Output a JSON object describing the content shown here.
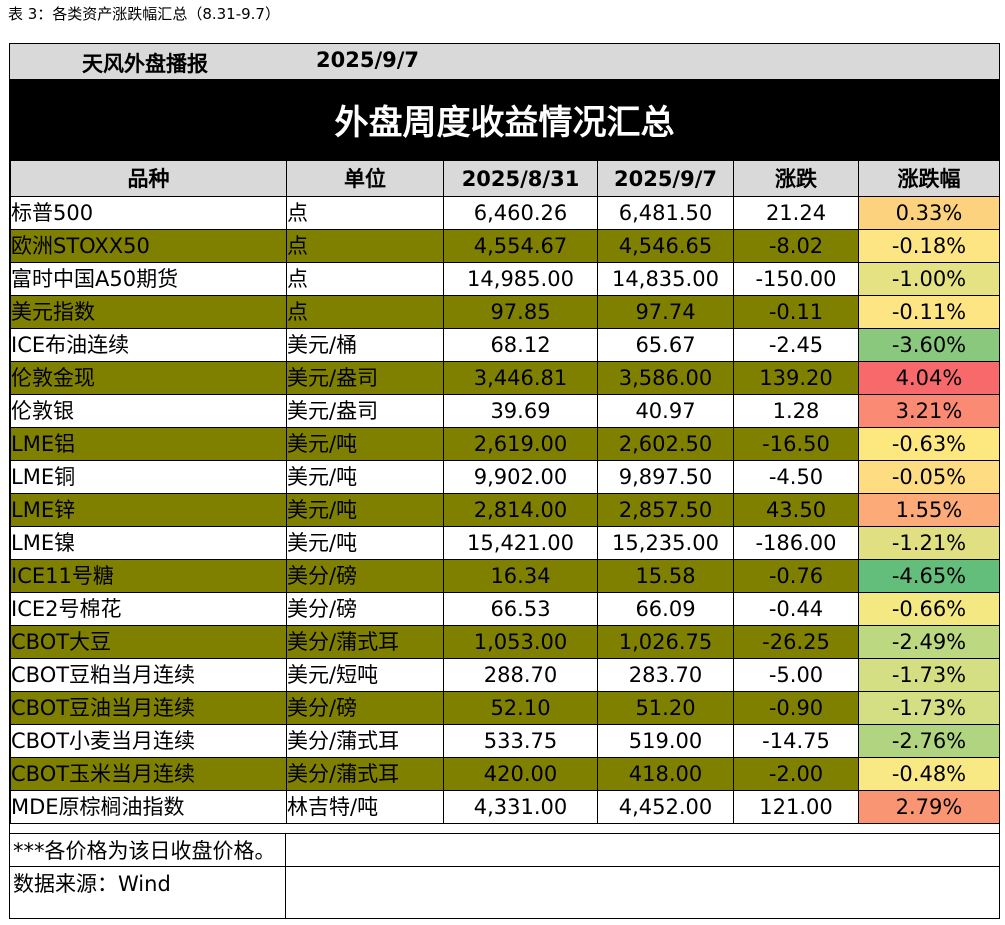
{
  "caption": "表 3：各类资产涨跌幅汇总（8.31-9.7）",
  "header": {
    "brand": "天风外盘播报",
    "date": "2025/9/7"
  },
  "banner_title": "外盘周度收益情况汇总",
  "columns": [
    "品种",
    "单位",
    "2025/8/31",
    "2025/9/7",
    "涨跌",
    "涨跌幅"
  ],
  "rows": [
    {
      "name": "标普500",
      "unit": "点",
      "prev": "6,460.26",
      "curr": "6,481.50",
      "change": "21.24",
      "pct": "0.33%",
      "shaded": false,
      "heat": "#fcd27f"
    },
    {
      "name": "欧洲STOXX50",
      "unit": "点",
      "prev": "4,554.67",
      "curr": "4,546.65",
      "change": "-8.02",
      "pct": "-0.18%",
      "shaded": true,
      "heat": "#fee583"
    },
    {
      "name": "富时中国A50期货",
      "unit": "点",
      "prev": "14,985.00",
      "curr": "14,835.00",
      "change": "-150.00",
      "pct": "-1.00%",
      "shaded": false,
      "heat": "#e5e283"
    },
    {
      "name": "美元指数",
      "unit": "点",
      "prev": "97.85",
      "curr": "97.74",
      "change": "-0.11",
      "pct": "-0.11%",
      "shaded": true,
      "heat": "#fee583"
    },
    {
      "name": "ICE布油连续",
      "unit": "美元/桶",
      "prev": "68.12",
      "curr": "65.67",
      "change": "-2.45",
      "pct": "-3.60%",
      "shaded": false,
      "heat": "#8ac97d"
    },
    {
      "name": "伦敦金现",
      "unit": "美元/盎司",
      "prev": "3,446.81",
      "curr": "3,586.00",
      "change": "139.20",
      "pct": "4.04%",
      "shaded": true,
      "heat": "#f8696b"
    },
    {
      "name": "伦敦银",
      "unit": "美元/盎司",
      "prev": "39.69",
      "curr": "40.97",
      "change": "1.28",
      "pct": "3.21%",
      "shaded": false,
      "heat": "#fa8a73"
    },
    {
      "name": "LME铝",
      "unit": "美元/吨",
      "prev": "2,619.00",
      "curr": "2,602.50",
      "change": "-16.50",
      "pct": "-0.63%",
      "shaded": true,
      "heat": "#fde880"
    },
    {
      "name": "LME铜",
      "unit": "美元/吨",
      "prev": "9,902.00",
      "curr": "9,897.50",
      "change": "-4.50",
      "pct": "-0.05%",
      "shaded": false,
      "heat": "#fedd82"
    },
    {
      "name": "LME锌",
      "unit": "美元/吨",
      "prev": "2,814.00",
      "curr": "2,857.50",
      "change": "43.50",
      "pct": "1.55%",
      "shaded": true,
      "heat": "#fbaa78"
    },
    {
      "name": "LME镍",
      "unit": "美元/吨",
      "prev": "15,421.00",
      "curr": "15,235.00",
      "change": "-186.00",
      "pct": "-1.21%",
      "shaded": false,
      "heat": "#e0e083"
    },
    {
      "name": "ICE11号糖",
      "unit": "美分/磅",
      "prev": "16.34",
      "curr": "15.58",
      "change": "-0.76",
      "pct": "-4.65%",
      "shaded": true,
      "heat": "#63be7b"
    },
    {
      "name": "ICE2号棉花",
      "unit": "美分/磅",
      "prev": "66.53",
      "curr": "66.09",
      "change": "-0.44",
      "pct": "-0.66%",
      "shaded": false,
      "heat": "#f3e882"
    },
    {
      "name": "CBOT大豆",
      "unit": "美分/蒲式耳",
      "prev": "1,053.00",
      "curr": "1,026.75",
      "change": "-26.25",
      "pct": "-2.49%",
      "shaded": true,
      "heat": "#bcd881"
    },
    {
      "name": "CBOT豆粕当月连续",
      "unit": "美元/短吨",
      "prev": "288.70",
      "curr": "283.70",
      "change": "-5.00",
      "pct": "-1.73%",
      "shaded": false,
      "heat": "#d3df82"
    },
    {
      "name": "CBOT豆油当月连续",
      "unit": "美分/磅",
      "prev": "52.10",
      "curr": "51.20",
      "change": "-0.90",
      "pct": "-1.73%",
      "shaded": true,
      "heat": "#d3df82"
    },
    {
      "name": "CBOT小麦当月连续",
      "unit": "美分/蒲式耳",
      "prev": "533.75",
      "curr": "519.00",
      "change": "-14.75",
      "pct": "-2.76%",
      "shaded": false,
      "heat": "#b0d47f"
    },
    {
      "name": "CBOT玉米当月连续",
      "unit": "美分/蒲式耳",
      "prev": "420.00",
      "curr": "418.00",
      "change": "-2.00",
      "pct": "-0.48%",
      "shaded": true,
      "heat": "#f8e984"
    },
    {
      "name": "MDE原棕榈油指数",
      "unit": "林吉特/吨",
      "prev": "4,331.00",
      "curr": "4,452.00",
      "change": "121.00",
      "pct": "2.79%",
      "shaded": false,
      "heat": "#fa9573"
    }
  ],
  "notes": {
    "price_note": "***各价格为该日收盘价格。",
    "source": "数据来源：Wind"
  },
  "colors": {
    "shaded_row": "#808000",
    "header_bg": "#d9d9d9",
    "banner_bg": "#000000"
  }
}
